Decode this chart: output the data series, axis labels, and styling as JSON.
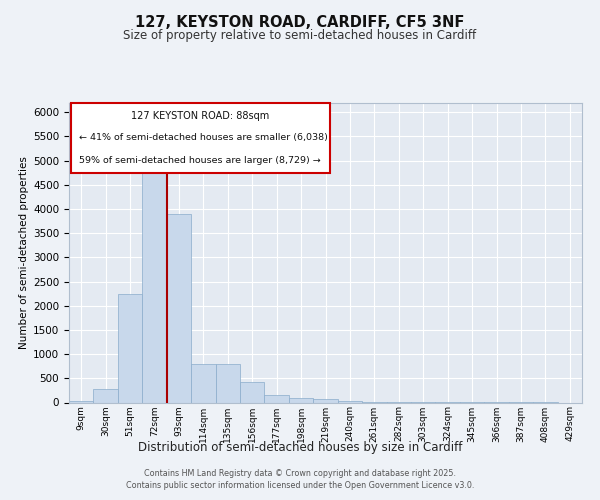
{
  "title": "127, KEYSTON ROAD, CARDIFF, CF5 3NF",
  "subtitle": "Size of property relative to semi-detached houses in Cardiff",
  "xlabel": "Distribution of semi-detached houses by size in Cardiff",
  "ylabel": "Number of semi-detached properties",
  "footer_line1": "Contains HM Land Registry data © Crown copyright and database right 2025.",
  "footer_line2": "Contains public sector information licensed under the Open Government Licence v3.0.",
  "property_label": "127 KEYSTON ROAD: 88sqm",
  "smaller_label": "← 41% of semi-detached houses are smaller (6,038)",
  "larger_label": "59% of semi-detached houses are larger (8,729) →",
  "property_bin_index": 3,
  "bar_color": "#c8d8eb",
  "bar_edge_color": "#8aaccb",
  "highlight_color": "#aa0000",
  "background_color": "#eef2f7",
  "plot_bg_color": "#e4eaf2",
  "grid_color": "#ffffff",
  "categories": [
    "9sqm",
    "30sqm",
    "51sqm",
    "72sqm",
    "93sqm",
    "114sqm",
    "135sqm",
    "156sqm",
    "177sqm",
    "198sqm",
    "219sqm",
    "240sqm",
    "261sqm",
    "282sqm",
    "303sqm",
    "324sqm",
    "345sqm",
    "366sqm",
    "387sqm",
    "408sqm",
    "429sqm"
  ],
  "values": [
    25,
    270,
    2250,
    4900,
    3900,
    800,
    800,
    420,
    160,
    100,
    70,
    40,
    15,
    8,
    4,
    3,
    2,
    1,
    1,
    1,
    0
  ],
  "ylim": [
    0,
    6200
  ],
  "yticks": [
    0,
    500,
    1000,
    1500,
    2000,
    2500,
    3000,
    3500,
    4000,
    4500,
    5000,
    5500,
    6000
  ]
}
